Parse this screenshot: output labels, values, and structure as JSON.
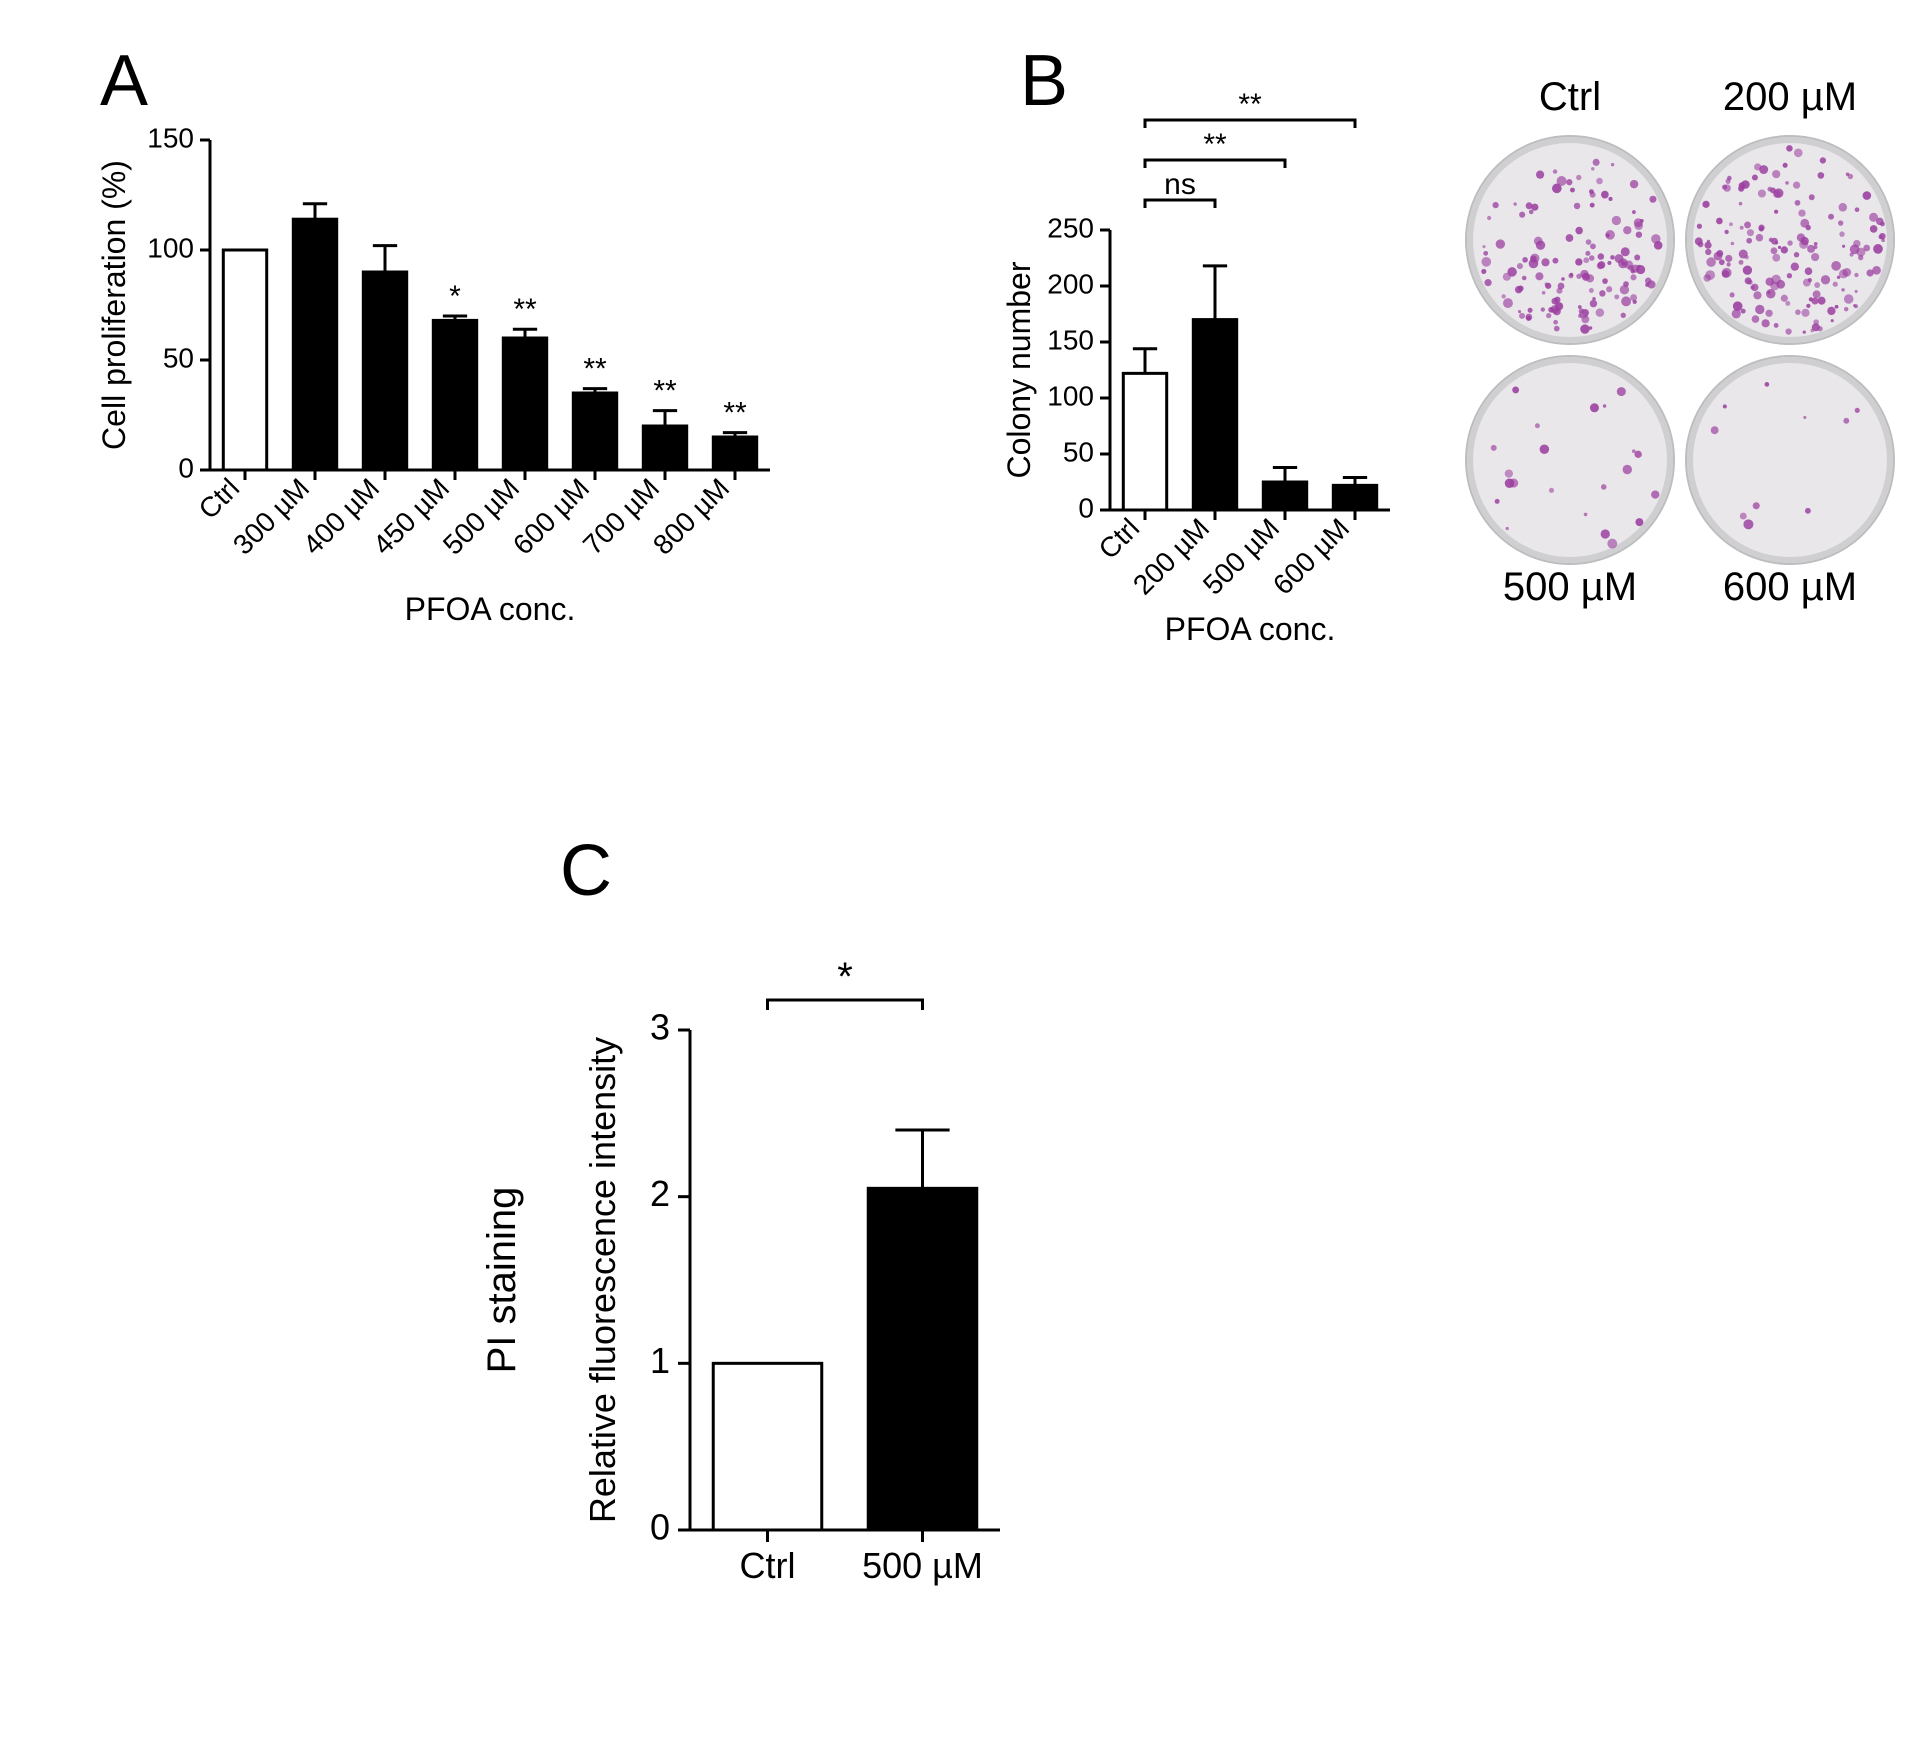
{
  "background_color": "#ffffff",
  "text_color": "#000000",
  "panel_label_fontsize": 72,
  "axis_fontsize": 28,
  "label_fontsize": 32,
  "sig_fontsize": 30,
  "well_label_fontsize": 40,
  "bar_stroke_width": 3,
  "axis_stroke_width": 3,
  "panelA": {
    "label": "A",
    "type": "bar",
    "ylabel": "Cell proliferation (%)",
    "xlabel": "PFOA conc.",
    "categories": [
      "Ctrl",
      "300 µM",
      "400 µM",
      "450 µM",
      "500 µM",
      "600 µM",
      "700 µM",
      "800 µM"
    ],
    "values": [
      100,
      114,
      90,
      68,
      60,
      35,
      20,
      15
    ],
    "errors": [
      0,
      7,
      12,
      2,
      4,
      2,
      7,
      2
    ],
    "sig": [
      "",
      "",
      "",
      "*",
      "**",
      "**",
      "**",
      "**"
    ],
    "fill_colors": [
      "#ffffff",
      "#000000",
      "#000000",
      "#000000",
      "#000000",
      "#000000",
      "#000000",
      "#000000"
    ],
    "stroke_color": "#000000",
    "ylim": [
      0,
      150
    ],
    "ytick_step": 50,
    "bar_width_ratio": 0.62
  },
  "panelB": {
    "label": "B",
    "type": "bar",
    "ylabel": "Colony number",
    "xlabel": "PFOA conc.",
    "categories": [
      "Ctrl",
      "200 µM",
      "500 µM",
      "600 µM"
    ],
    "values": [
      122,
      170,
      25,
      22
    ],
    "errors": [
      22,
      48,
      13,
      7
    ],
    "fill_colors": [
      "#ffffff",
      "#000000",
      "#000000",
      "#000000"
    ],
    "stroke_color": "#000000",
    "ylim": [
      0,
      250
    ],
    "ytick_step": 50,
    "bar_width_ratio": 0.62,
    "comparisons": [
      {
        "from": 0,
        "to": 1,
        "label": "ns"
      },
      {
        "from": 0,
        "to": 2,
        "label": "**"
      },
      {
        "from": 0,
        "to": 3,
        "label": "**"
      }
    ],
    "wells": {
      "labels": [
        "Ctrl",
        "200 µM",
        "500 µM",
        "600 µM"
      ],
      "dot_color": "#9b3fa0",
      "bg_color": "#e9e7ea",
      "rim_color": "#cfcfd2",
      "dot_counts": [
        140,
        160,
        22,
        10
      ]
    }
  },
  "panelC": {
    "label": "C",
    "type": "bar",
    "outer_ylabel": "PI staining",
    "ylabel": "Relative fluorescence intensity",
    "categories": [
      "Ctrl",
      "500 µM"
    ],
    "values": [
      1.0,
      2.05
    ],
    "errors": [
      0,
      0.35
    ],
    "fill_colors": [
      "#ffffff",
      "#000000"
    ],
    "stroke_color": "#000000",
    "ylim": [
      0,
      3
    ],
    "ytick_step": 1,
    "bar_width_ratio": 0.7,
    "comparisons": [
      {
        "from": 0,
        "to": 1,
        "label": "*"
      }
    ]
  }
}
